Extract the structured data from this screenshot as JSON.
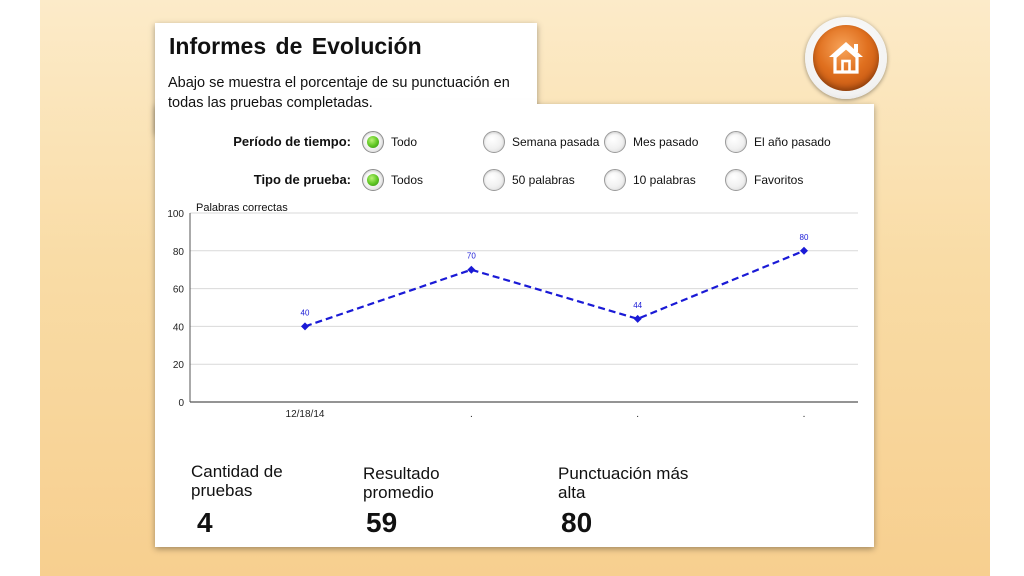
{
  "header": {
    "title": "Informes  de  Evolución",
    "description": "Abajo se muestra el porcentaje de su punctuación en todas las pruebas completadas."
  },
  "filters": {
    "period": {
      "label": "Período de tiempo:",
      "options": [
        {
          "label": "Todo",
          "selected": true
        },
        {
          "label": "Semana pasada",
          "selected": false
        },
        {
          "label": "Mes pasado",
          "selected": false
        },
        {
          "label": "El año pasado",
          "selected": false
        }
      ]
    },
    "test_type": {
      "label": "Tipo de prueba:",
      "options": [
        {
          "label": "Todos",
          "selected": true
        },
        {
          "label": "50 palabras",
          "selected": false
        },
        {
          "label": "10 palabras",
          "selected": false
        },
        {
          "label": "Favoritos",
          "selected": false
        }
      ]
    }
  },
  "chart_data": {
    "type": "line",
    "title": "Palabras  correctas",
    "x": [
      "12/18/14",
      ".",
      ".",
      "."
    ],
    "series": [
      {
        "values": [
          40,
          70,
          44,
          80
        ],
        "color": "#1a1ad6",
        "style": "dashed",
        "marker": "diamond",
        "data_labels": true
      }
    ],
    "ylim": [
      0,
      100
    ],
    "yticks": [
      0,
      20,
      40,
      60,
      80,
      100
    ],
    "grid": true,
    "legend": "none"
  },
  "stats": {
    "count": {
      "label_line1": "Cantidad de",
      "label_line2": "pruebas",
      "value": "4"
    },
    "average": {
      "label_line1": "Resultado",
      "label_line2": "promedio",
      "value": "59"
    },
    "highest": {
      "label_line1": "Punctuación más",
      "label_line2": "alta",
      "value": "80"
    }
  },
  "home_button": {
    "icon": "home-icon",
    "color": "#e0701f"
  }
}
